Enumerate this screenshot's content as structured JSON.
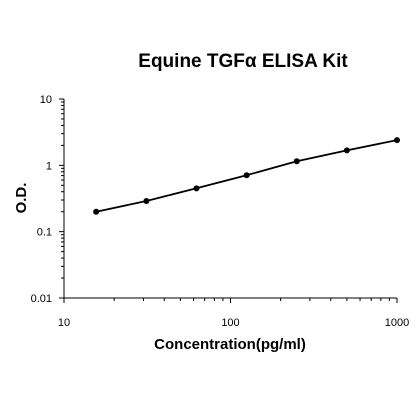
{
  "chart_data": {
    "type": "scatter",
    "title": "Equine TGFα ELISA Kit",
    "xlabel": "Concentration(pg/ml)",
    "ylabel": "O.D.",
    "x_scale": "log",
    "y_scale": "log",
    "xlim": [
      10,
      1000
    ],
    "ylim": [
      0.01,
      10
    ],
    "x_ticks": [
      "10",
      "100",
      "1000"
    ],
    "y_ticks": [
      "0.01",
      "0.1",
      "1",
      "10"
    ],
    "grid": false,
    "legend": "none",
    "series": [
      {
        "x": [
          15.6,
          31.25,
          62.5,
          125,
          250,
          500,
          1000
        ],
        "y": [
          0.2,
          0.29,
          0.45,
          0.71,
          1.15,
          1.68,
          2.4
        ]
      }
    ],
    "fit_line": true,
    "colors": {
      "line": "#000000",
      "points": "#000000",
      "axis": "#000000"
    }
  }
}
